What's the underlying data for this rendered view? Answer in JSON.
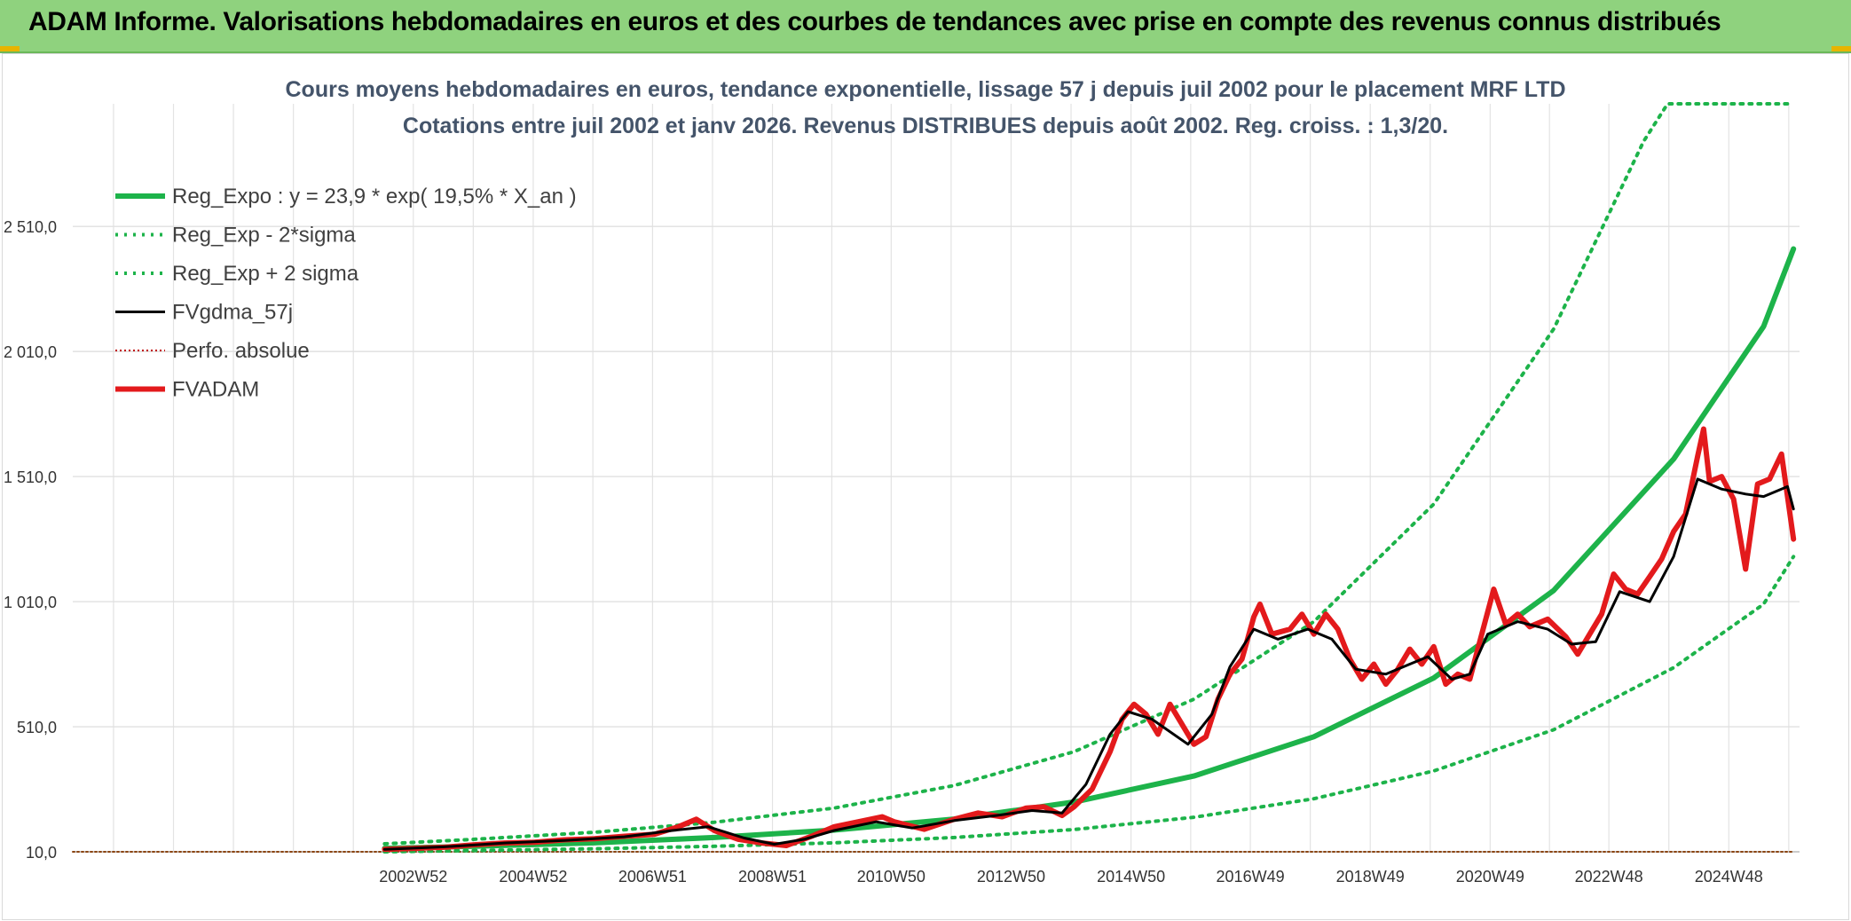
{
  "header": {
    "title": "ADAM Informe. Valorisations hebdomadaires en euros et des courbes de tendances avec prise en compte des revenus connus distribués",
    "background": "#8fd27e"
  },
  "chart_data": {
    "type": "line",
    "title": "Cours moyens hebdomadaires en euros, tendance exponentielle, lissage 57 j depuis juil 2002 pour le placement MRF LTD",
    "subtitle": "Cotations entre juil 2002 et janv 2026. Revenus DISTRIBUES depuis août 2002. Reg. croiss. : 1,3/20.",
    "xlabel": "",
    "ylabel": "",
    "x_range": [
      1997.3,
      2026.1
    ],
    "ylim": [
      10,
      3000
    ],
    "y_ticks": [
      10,
      510,
      1010,
      1510,
      2010,
      2510
    ],
    "y_tick_labels": [
      "10,0",
      "510,0",
      "1 010,0",
      "1 510,0",
      "2 010,0",
      "2 510,0"
    ],
    "x_ticks": [
      {
        "label": "2002W52",
        "year": 2002.98
      },
      {
        "label": "2004W52",
        "year": 2004.98
      },
      {
        "label": "2006W51",
        "year": 2006.97
      },
      {
        "label": "2008W51",
        "year": 2008.97
      },
      {
        "label": "2010W50",
        "year": 2010.95
      },
      {
        "label": "2012W50",
        "year": 2012.95
      },
      {
        "label": "2014W50",
        "year": 2014.95
      },
      {
        "label": "2016W49",
        "year": 2016.94
      },
      {
        "label": "2018W49",
        "year": 2018.94
      },
      {
        "label": "2020W49",
        "year": 2020.94
      },
      {
        "label": "2022W48",
        "year": 2022.92
      },
      {
        "label": "2024W48",
        "year": 2024.92
      }
    ],
    "grid": true,
    "legend_position": "top-left",
    "series": [
      {
        "name": "Reg_Expo : y = 23,9 * exp( 19,5% *  X_an )",
        "key": "reg_expo",
        "color": "#1db34a",
        "style": "solid-thick",
        "points": [
          [
            2002.5,
            24
          ],
          [
            2004,
            32
          ],
          [
            2006,
            46
          ],
          [
            2008,
            67
          ],
          [
            2010,
            97
          ],
          [
            2012,
            141
          ],
          [
            2014,
            209
          ],
          [
            2016,
            313
          ],
          [
            2018,
            470
          ],
          [
            2020,
            705
          ],
          [
            2022,
            1055
          ],
          [
            2024,
            1580
          ],
          [
            2025.5,
            2110
          ],
          [
            2026.0,
            2420
          ]
        ]
      },
      {
        "name": "Reg_Exp - 2*sigma",
        "key": "reg_minus",
        "color": "#1db34a",
        "style": "dotted",
        "points": [
          [
            2002.5,
            10
          ],
          [
            2004,
            15
          ],
          [
            2006,
            22
          ],
          [
            2008,
            32
          ],
          [
            2010,
            46
          ],
          [
            2012,
            67
          ],
          [
            2014,
            99
          ],
          [
            2016,
            148
          ],
          [
            2018,
            222
          ],
          [
            2020,
            333
          ],
          [
            2022,
            498
          ],
          [
            2024,
            746
          ],
          [
            2025.5,
            1000
          ],
          [
            2026.0,
            1190
          ]
        ]
      },
      {
        "name": "Reg_Exp + 2 sigma",
        "key": "reg_plus",
        "color": "#1db34a",
        "style": "dotted",
        "points": [
          [
            2002.5,
            42
          ],
          [
            2004,
            60
          ],
          [
            2006,
            88
          ],
          [
            2008,
            128
          ],
          [
            2010,
            185
          ],
          [
            2012,
            275
          ],
          [
            2014,
            410
          ],
          [
            2016,
            620
          ],
          [
            2018,
            930
          ],
          [
            2020,
            1400
          ],
          [
            2022,
            2100
          ],
          [
            2023.5,
            2850
          ],
          [
            2023.9,
            3000
          ],
          [
            2026.0,
            3000
          ]
        ]
      },
      {
        "name": "FVgdma_57j",
        "key": "fvgdma",
        "color": "#000000",
        "style": "solid",
        "points": [
          [
            2002.5,
            20
          ],
          [
            2003.5,
            30
          ],
          [
            2004.5,
            45
          ],
          [
            2005.5,
            55
          ],
          [
            2006.5,
            70
          ],
          [
            2007.3,
            95
          ],
          [
            2007.9,
            110
          ],
          [
            2008.5,
            65
          ],
          [
            2009.0,
            40
          ],
          [
            2009.5,
            60
          ],
          [
            2010.0,
            95
          ],
          [
            2010.7,
            130
          ],
          [
            2011.3,
            105
          ],
          [
            2012.0,
            135
          ],
          [
            2012.7,
            155
          ],
          [
            2013.3,
            175
          ],
          [
            2013.8,
            165
          ],
          [
            2014.2,
            280
          ],
          [
            2014.6,
            480
          ],
          [
            2014.9,
            570
          ],
          [
            2015.3,
            540
          ],
          [
            2015.9,
            440
          ],
          [
            2016.3,
            560
          ],
          [
            2016.6,
            750
          ],
          [
            2017.0,
            900
          ],
          [
            2017.4,
            860
          ],
          [
            2017.9,
            900
          ],
          [
            2018.3,
            860
          ],
          [
            2018.7,
            740
          ],
          [
            2019.2,
            720
          ],
          [
            2019.6,
            760
          ],
          [
            2019.9,
            790
          ],
          [
            2020.3,
            700
          ],
          [
            2020.6,
            720
          ],
          [
            2020.9,
            880
          ],
          [
            2021.4,
            930
          ],
          [
            2021.9,
            900
          ],
          [
            2022.3,
            840
          ],
          [
            2022.7,
            850
          ],
          [
            2023.1,
            1050
          ],
          [
            2023.6,
            1010
          ],
          [
            2024.0,
            1190
          ],
          [
            2024.4,
            1500
          ],
          [
            2024.8,
            1460
          ],
          [
            2025.2,
            1440
          ],
          [
            2025.5,
            1430
          ],
          [
            2025.9,
            1470
          ],
          [
            2026.0,
            1380
          ]
        ]
      },
      {
        "name": "Perfo. absolue",
        "key": "perfo",
        "color": "#c00000",
        "style": "dotted-thin",
        "points": [
          [
            1997.3,
            10
          ],
          [
            2026.0,
            10
          ]
        ]
      },
      {
        "name": "FVADAM",
        "key": "fvadam",
        "color": "#e31a1c",
        "style": "solid-thick",
        "points": [
          [
            2002.5,
            20
          ],
          [
            2003.0,
            24
          ],
          [
            2003.5,
            28
          ],
          [
            2004.0,
            38
          ],
          [
            2004.5,
            45
          ],
          [
            2005.0,
            48
          ],
          [
            2005.5,
            58
          ],
          [
            2006.0,
            62
          ],
          [
            2006.5,
            72
          ],
          [
            2007.0,
            80
          ],
          [
            2007.4,
            110
          ],
          [
            2007.7,
            140
          ],
          [
            2008.0,
            95
          ],
          [
            2008.4,
            60
          ],
          [
            2008.8,
            45
          ],
          [
            2009.2,
            35
          ],
          [
            2009.6,
            70
          ],
          [
            2010.0,
            110
          ],
          [
            2010.4,
            130
          ],
          [
            2010.8,
            150
          ],
          [
            2011.0,
            130
          ],
          [
            2011.5,
            100
          ],
          [
            2012.0,
            140
          ],
          [
            2012.4,
            165
          ],
          [
            2012.8,
            150
          ],
          [
            2013.2,
            185
          ],
          [
            2013.5,
            190
          ],
          [
            2013.8,
            155
          ],
          [
            2014.0,
            190
          ],
          [
            2014.3,
            260
          ],
          [
            2014.6,
            410
          ],
          [
            2014.8,
            540
          ],
          [
            2015.0,
            600
          ],
          [
            2015.2,
            560
          ],
          [
            2015.4,
            480
          ],
          [
            2015.6,
            600
          ],
          [
            2015.8,
            520
          ],
          [
            2016.0,
            440
          ],
          [
            2016.2,
            470
          ],
          [
            2016.4,
            620
          ],
          [
            2016.6,
            720
          ],
          [
            2016.8,
            780
          ],
          [
            2017.0,
            950
          ],
          [
            2017.1,
            1000
          ],
          [
            2017.3,
            880
          ],
          [
            2017.6,
            900
          ],
          [
            2017.8,
            960
          ],
          [
            2018.0,
            880
          ],
          [
            2018.2,
            960
          ],
          [
            2018.4,
            900
          ],
          [
            2018.6,
            780
          ],
          [
            2018.8,
            700
          ],
          [
            2019.0,
            760
          ],
          [
            2019.2,
            680
          ],
          [
            2019.4,
            740
          ],
          [
            2019.6,
            820
          ],
          [
            2019.8,
            760
          ],
          [
            2020.0,
            830
          ],
          [
            2020.2,
            680
          ],
          [
            2020.4,
            720
          ],
          [
            2020.6,
            700
          ],
          [
            2020.8,
            880
          ],
          [
            2021.0,
            1060
          ],
          [
            2021.2,
            920
          ],
          [
            2021.4,
            960
          ],
          [
            2021.6,
            910
          ],
          [
            2021.9,
            940
          ],
          [
            2022.2,
            870
          ],
          [
            2022.4,
            800
          ],
          [
            2022.6,
            880
          ],
          [
            2022.8,
            960
          ],
          [
            2023.0,
            1120
          ],
          [
            2023.2,
            1060
          ],
          [
            2023.4,
            1040
          ],
          [
            2023.6,
            1110
          ],
          [
            2023.8,
            1180
          ],
          [
            2024.0,
            1290
          ],
          [
            2024.2,
            1360
          ],
          [
            2024.4,
            1590
          ],
          [
            2024.5,
            1700
          ],
          [
            2024.6,
            1490
          ],
          [
            2024.8,
            1510
          ],
          [
            2025.0,
            1420
          ],
          [
            2025.2,
            1140
          ],
          [
            2025.4,
            1480
          ],
          [
            2025.6,
            1500
          ],
          [
            2025.8,
            1600
          ],
          [
            2026.0,
            1260
          ]
        ]
      }
    ]
  }
}
